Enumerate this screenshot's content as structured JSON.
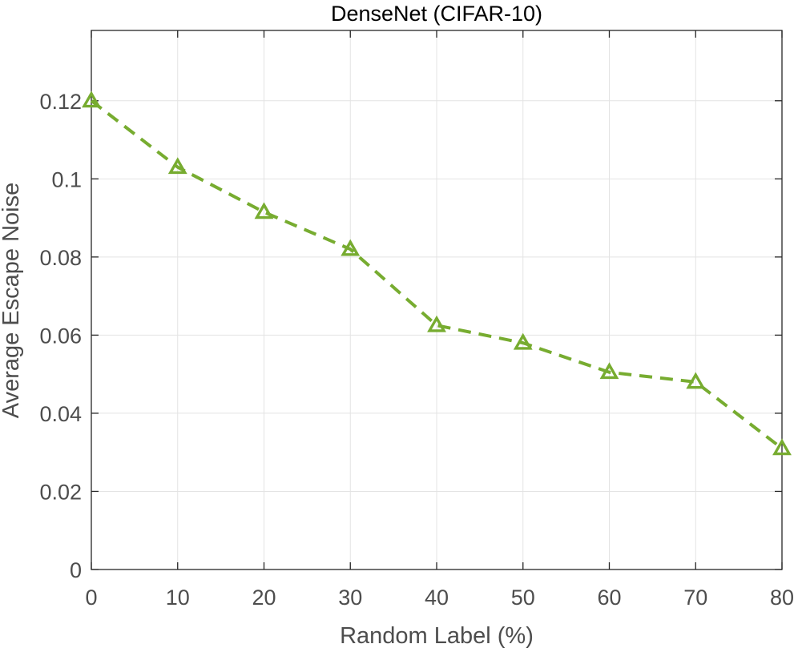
{
  "chart_data": {
    "type": "line",
    "title": "DenseNet (CIFAR-10)",
    "xlabel": "Random Label (%)",
    "ylabel": "Average Escape Noise",
    "x": [
      0,
      10,
      20,
      30,
      40,
      50,
      60,
      70,
      80
    ],
    "series": [
      {
        "values": [
          0.12,
          0.103,
          0.0915,
          0.082,
          0.0625,
          0.058,
          0.0505,
          0.048,
          0.031
        ],
        "color": "#77ac30",
        "line_style": "dashed",
        "marker": "triangle-up-open"
      }
    ],
    "xlim": [
      0,
      80
    ],
    "ylim": [
      0,
      0.138
    ],
    "xticks": [
      0,
      10,
      20,
      30,
      40,
      50,
      60,
      70,
      80
    ],
    "xtick_labels": [
      "0",
      "10",
      "20",
      "30",
      "40",
      "50",
      "60",
      "70",
      "80"
    ],
    "yticks": [
      0,
      0.02,
      0.04,
      0.06,
      0.08,
      0.1,
      0.12
    ],
    "ytick_labels": [
      "0",
      "0.02",
      "0.04",
      "0.06",
      "0.08",
      "0.1",
      "0.12"
    ],
    "grid": true,
    "legend": false
  }
}
